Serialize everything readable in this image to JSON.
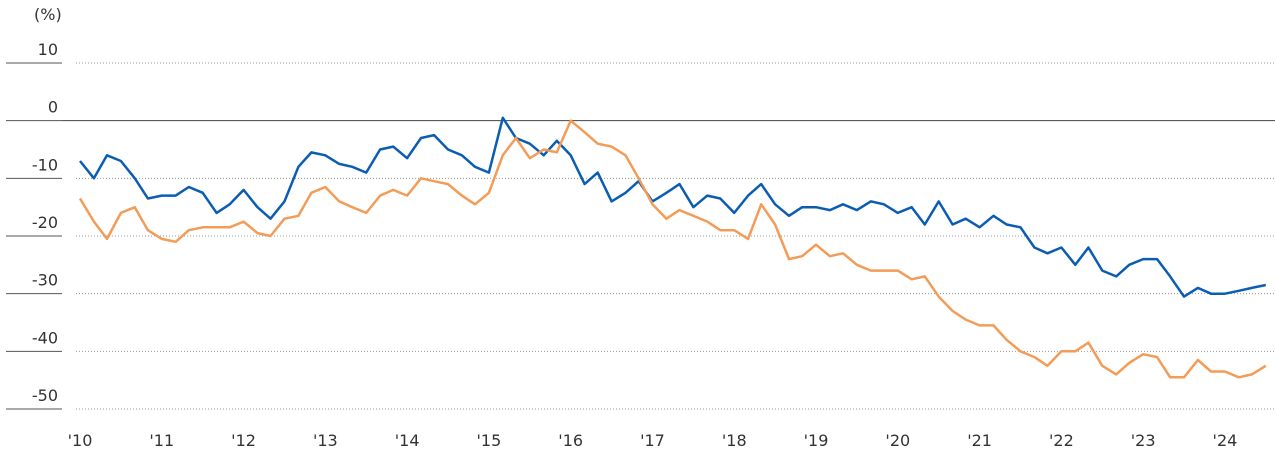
{
  "chart_data": {
    "type": "line",
    "y_axis_label": "(%)",
    "xlim": [
      2010,
      2024.6
    ],
    "ylim": [
      -50,
      10
    ],
    "yticks": [
      10,
      0,
      -10,
      -20,
      -30,
      -40,
      -50
    ],
    "xticks": [
      {
        "value": 2010,
        "label": "'10"
      },
      {
        "value": 2011,
        "label": "'11"
      },
      {
        "value": 2012,
        "label": "'12"
      },
      {
        "value": 2013,
        "label": "'13"
      },
      {
        "value": 2014,
        "label": "'14"
      },
      {
        "value": 2015,
        "label": "'15"
      },
      {
        "value": 2016,
        "label": "'16"
      },
      {
        "value": 2017,
        "label": "'17"
      },
      {
        "value": 2018,
        "label": "'18"
      },
      {
        "value": 2019,
        "label": "'19"
      },
      {
        "value": 2020,
        "label": "'20"
      },
      {
        "value": 2021,
        "label": "'21"
      },
      {
        "value": 2022,
        "label": "'22"
      },
      {
        "value": 2023,
        "label": "'23"
      },
      {
        "value": 2024,
        "label": "'24"
      }
    ],
    "grid": true,
    "x": [
      2010,
      2010.17,
      2010.33,
      2010.5,
      2010.67,
      2010.83,
      2011,
      2011.17,
      2011.33,
      2011.5,
      2011.67,
      2011.83,
      2012,
      2012.17,
      2012.33,
      2012.5,
      2012.67,
      2012.83,
      2013,
      2013.17,
      2013.33,
      2013.5,
      2013.67,
      2013.83,
      2014,
      2014.17,
      2014.33,
      2014.5,
      2014.67,
      2014.83,
      2015,
      2015.17,
      2015.33,
      2015.5,
      2015.67,
      2015.83,
      2016,
      2016.17,
      2016.33,
      2016.5,
      2016.67,
      2016.83,
      2017,
      2017.17,
      2017.33,
      2017.5,
      2017.67,
      2017.83,
      2018,
      2018.17,
      2018.33,
      2018.5,
      2018.67,
      2018.83,
      2019,
      2019.17,
      2019.33,
      2019.5,
      2019.67,
      2019.83,
      2020,
      2020.17,
      2020.33,
      2020.5,
      2020.67,
      2020.83,
      2021,
      2021.17,
      2021.33,
      2021.5,
      2021.67,
      2021.83,
      2022,
      2022.17,
      2022.33,
      2022.5,
      2022.67,
      2022.83,
      2023,
      2023.17,
      2023.33,
      2023.5,
      2023.67,
      2023.83,
      2024,
      2024.17,
      2024.33,
      2024.5
    ],
    "series": [
      {
        "color": "#0b5db3",
        "values": [
          -7,
          -10,
          -6,
          -7,
          -10,
          -13.5,
          -13,
          -13,
          -11.5,
          -12.5,
          -16,
          -14.5,
          -12,
          -15,
          -17,
          -14,
          -8,
          -5.5,
          -6,
          -7.5,
          -8,
          -9,
          -5,
          -4.5,
          -6.5,
          -3,
          -2.5,
          -5,
          -6,
          -8,
          -9,
          0.5,
          -3,
          -4,
          -6,
          -3.5,
          -6,
          -11,
          -9,
          -14,
          -12.5,
          -10.5,
          -14,
          -12.5,
          -11,
          -15,
          -13,
          -13.5,
          -16,
          -13,
          -11,
          -14.5,
          -16.5,
          -15,
          -15,
          -15.5,
          -14.5,
          -15.5,
          -14,
          -14.5,
          -16,
          -15,
          -18,
          -14,
          -18,
          -17,
          -18.5,
          -16.5,
          -18,
          -18.5,
          -22,
          -23,
          -22,
          -25,
          -22,
          -26,
          -27,
          -25,
          -24,
          -24,
          -27,
          -30.5,
          -29,
          -30,
          -30,
          -29.5,
          -29,
          -28.5
        ]
      },
      {
        "color": "#f39c58",
        "values": [
          -13.5,
          -17.5,
          -20.5,
          -16,
          -15,
          -19,
          -20.5,
          -21,
          -19,
          -18.5,
          -18.5,
          -18.5,
          -17.5,
          -19.5,
          -20,
          -17,
          -16.5,
          -12.5,
          -11.5,
          -14,
          -15,
          -16,
          -13,
          -12,
          -13,
          -10,
          -10.5,
          -11,
          -13,
          -14.5,
          -12.5,
          -6,
          -3,
          -6.5,
          -5,
          -5.5,
          0,
          -2,
          -4,
          -4.5,
          -6,
          -10,
          -14.5,
          -17,
          -15.5,
          -16.5,
          -17.5,
          -19,
          -19,
          -20.5,
          -14.5,
          -18,
          -24,
          -23.5,
          -21.5,
          -23.5,
          -23,
          -25,
          -26,
          -26,
          -26,
          -27.5,
          -27,
          -30.5,
          -33,
          -34.5,
          -35.5,
          -35.5,
          -38,
          -40,
          -41,
          -42.5,
          -40,
          -40,
          -38.5,
          -42.5,
          -44,
          -42,
          -40.5,
          -41,
          -44.5,
          -44.5,
          -41.5,
          -43.5,
          -43.5,
          -44.5,
          -44,
          -42.5
        ]
      }
    ]
  }
}
